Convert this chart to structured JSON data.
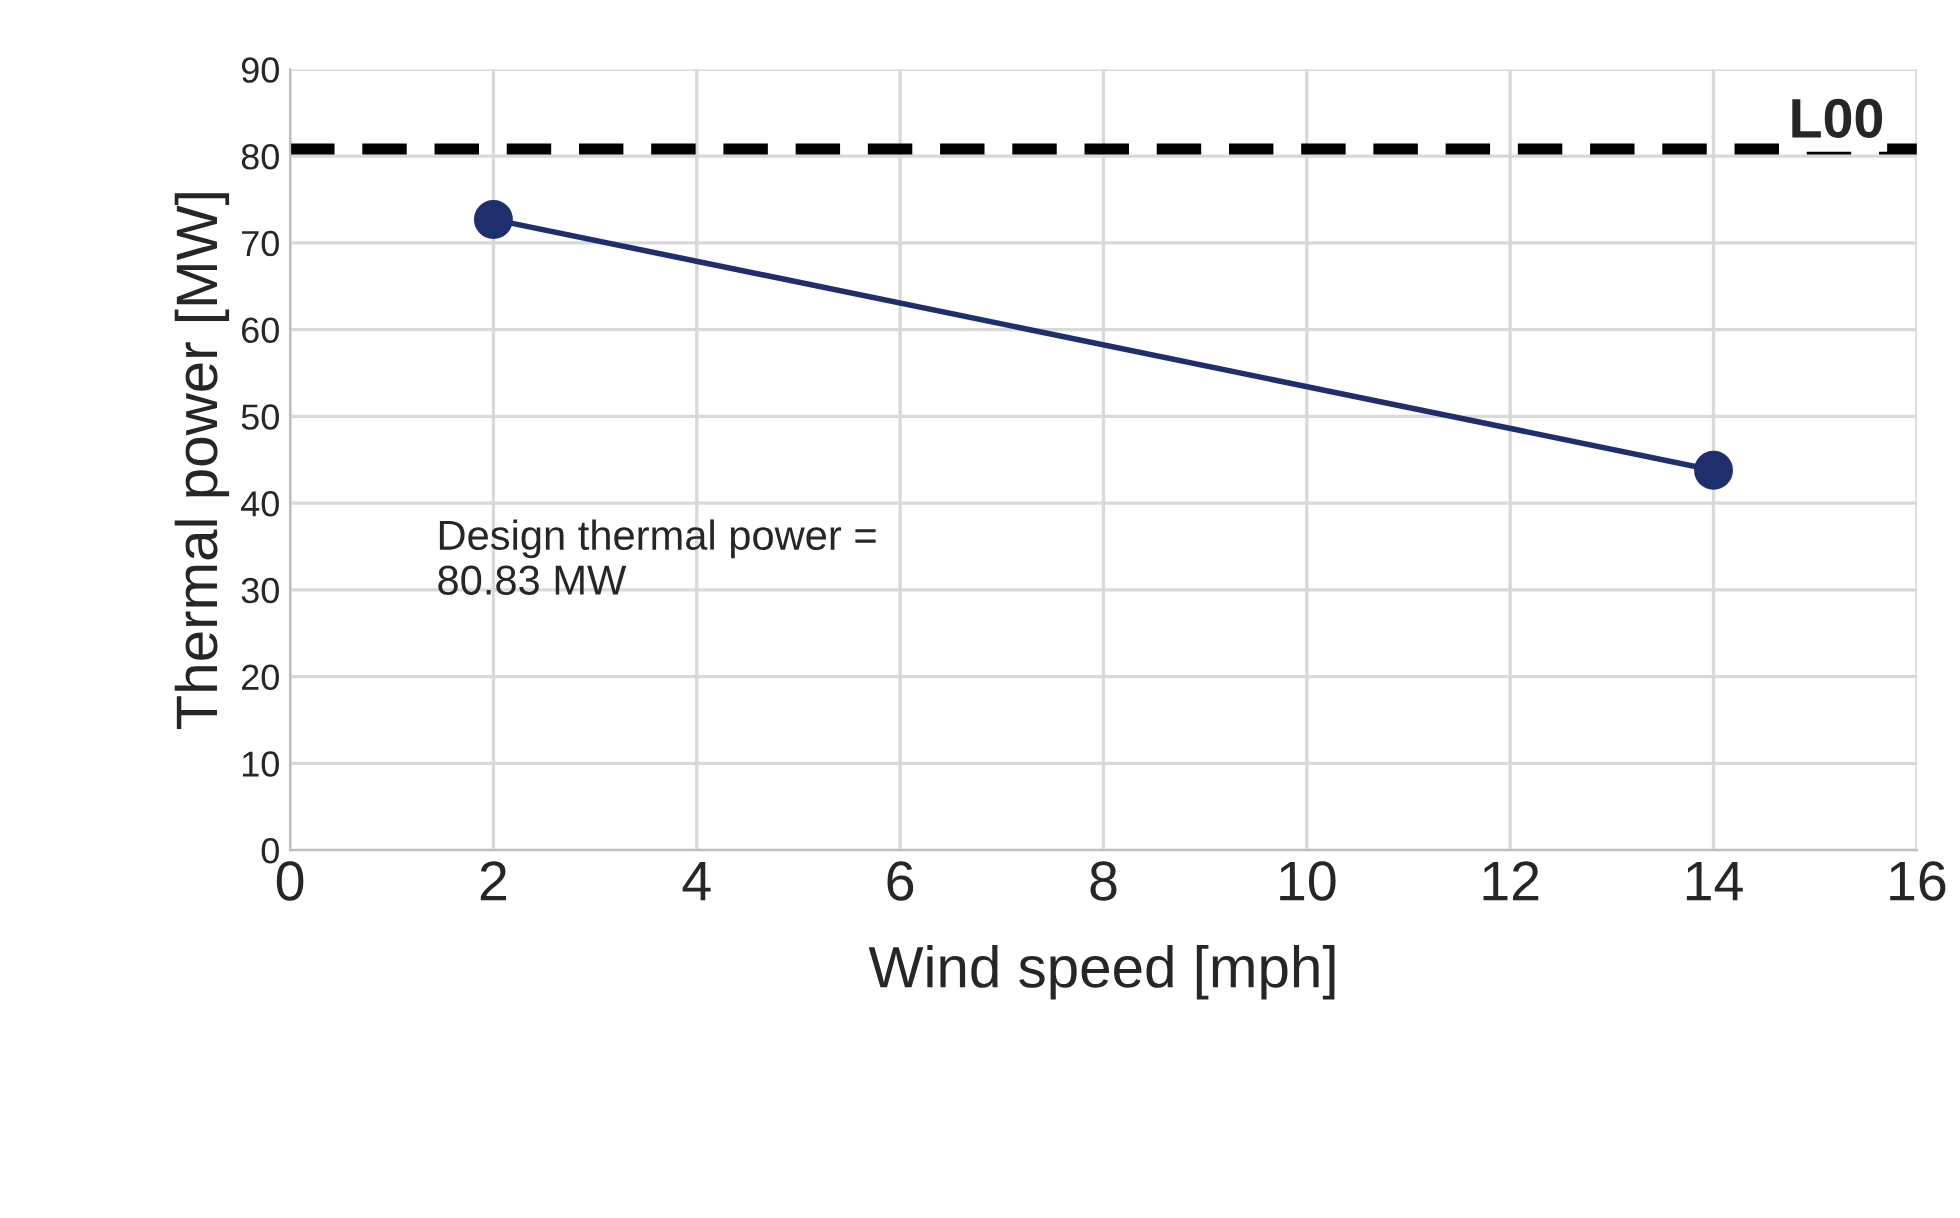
{
  "chart_data": {
    "type": "line",
    "xlabel": "Wind speed [mph]",
    "ylabel": "Thermal power [MW]",
    "x": [
      2,
      14
    ],
    "series": [
      {
        "color": "#1f2f6e",
        "values": [
          72.7,
          43.8
        ]
      }
    ],
    "xlim": [
      0,
      16
    ],
    "xticks": [
      0,
      2,
      4,
      6,
      8,
      10,
      12,
      14,
      16
    ],
    "ylim": [
      0,
      90
    ],
    "yticks": [
      0,
      10,
      20,
      30,
      40,
      50,
      60,
      70,
      80,
      90
    ],
    "ref_lines": [
      {
        "axis": "y",
        "value": 80.83,
        "label": "L00",
        "color": "#000000",
        "line_style": "dashed"
      }
    ],
    "annotations": [
      "Design thermal power =\n80.83 MW"
    ],
    "grid": true,
    "marker": "circle",
    "line_style": "solid"
  }
}
